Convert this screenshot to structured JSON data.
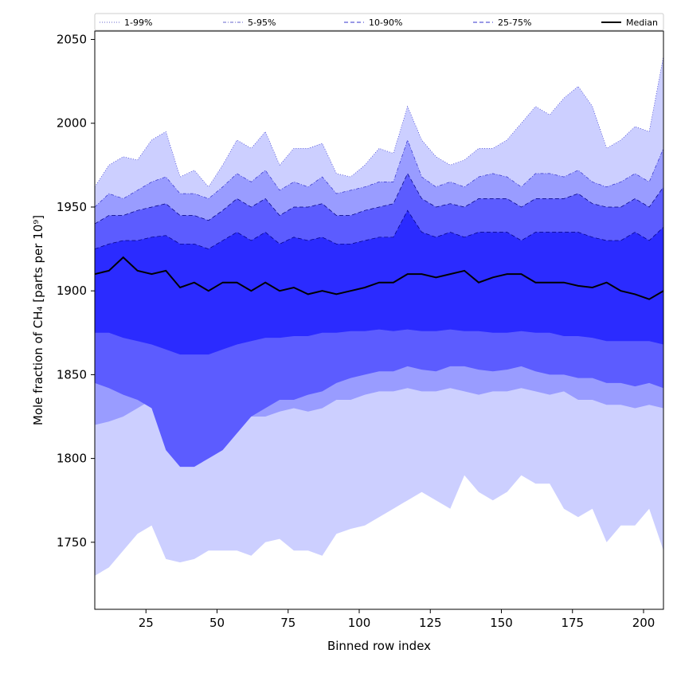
{
  "chart_data": {
    "type": "area",
    "xlabel": "Binned row index",
    "ylabel": "Mole fraction of CH₄ [parts per 10⁹]",
    "xlim": [
      7,
      207
    ],
    "ylim": [
      1710,
      2055
    ],
    "xticks": [
      25,
      50,
      75,
      100,
      125,
      150,
      175,
      200
    ],
    "yticks": [
      1750,
      1800,
      1850,
      1900,
      1950,
      2000,
      2050
    ],
    "legend_position": "top, above plot",
    "x_start": 7,
    "x_step": 5,
    "series": [
      {
        "name": "1-99%",
        "color": "#cccfff",
        "linestyle": "dotted",
        "upper": [
          1962,
          1975,
          1980,
          1978,
          1990,
          1995,
          1968,
          1972,
          1962,
          1975,
          1990,
          1985,
          1995,
          1975,
          1985,
          1985,
          1988,
          1970,
          1968,
          1975,
          1985,
          1982,
          2010,
          1990,
          1980,
          1975,
          1978,
          1985,
          1985,
          1990,
          2000,
          2010,
          2005,
          2015,
          2022,
          2010,
          1985,
          1990,
          1998,
          1995,
          2040
        ],
        "lower": [
          1730,
          1735,
          1745,
          1755,
          1760,
          1740,
          1738,
          1740,
          1745,
          1745,
          1745,
          1742,
          1750,
          1752,
          1745,
          1745,
          1742,
          1755,
          1758,
          1760,
          1765,
          1770,
          1775,
          1780,
          1775,
          1770,
          1790,
          1780,
          1775,
          1780,
          1790,
          1785,
          1785,
          1770,
          1765,
          1770,
          1750,
          1760,
          1760,
          1770,
          1745
        ]
      },
      {
        "name": "5-95%",
        "color": "#999cff",
        "linestyle": "dashdot",
        "upper": [
          1950,
          1958,
          1955,
          1960,
          1965,
          1968,
          1958,
          1958,
          1955,
          1962,
          1970,
          1965,
          1972,
          1960,
          1965,
          1962,
          1968,
          1958,
          1960,
          1962,
          1965,
          1965,
          1990,
          1968,
          1962,
          1965,
          1962,
          1968,
          1970,
          1968,
          1962,
          1970,
          1970,
          1968,
          1972,
          1965,
          1962,
          1965,
          1970,
          1965,
          1985
        ],
        "lower": [
          1820,
          1822,
          1825,
          1830,
          1835,
          1822,
          1820,
          1822,
          1825,
          1825,
          1822,
          1825,
          1825,
          1828,
          1830,
          1828,
          1830,
          1835,
          1835,
          1838,
          1840,
          1840,
          1842,
          1840,
          1840,
          1842,
          1840,
          1838,
          1840,
          1840,
          1842,
          1840,
          1838,
          1840,
          1835,
          1835,
          1832,
          1832,
          1830,
          1832,
          1830
        ]
      },
      {
        "name": "10-90%",
        "color": "#5c5cff",
        "linestyle": "dashed",
        "upper": [
          1940,
          1945,
          1945,
          1948,
          1950,
          1952,
          1945,
          1945,
          1942,
          1948,
          1955,
          1950,
          1955,
          1945,
          1950,
          1950,
          1952,
          1945,
          1945,
          1948,
          1950,
          1952,
          1970,
          1955,
          1950,
          1952,
          1950,
          1955,
          1955,
          1955,
          1950,
          1955,
          1955,
          1955,
          1958,
          1952,
          1950,
          1950,
          1955,
          1950,
          1962
        ],
        "lower": [
          1845,
          1842,
          1838,
          1835,
          1830,
          1805,
          1795,
          1795,
          1800,
          1805,
          1815,
          1825,
          1830,
          1835,
          1835,
          1838,
          1840,
          1845,
          1848,
          1850,
          1852,
          1852,
          1855,
          1853,
          1852,
          1855,
          1855,
          1853,
          1852,
          1853,
          1855,
          1852,
          1850,
          1850,
          1848,
          1848,
          1845,
          1845,
          1843,
          1845,
          1842
        ]
      },
      {
        "name": "25-75%",
        "color": "#2b2bff",
        "linestyle": "dashed",
        "upper": [
          1925,
          1928,
          1930,
          1930,
          1932,
          1933,
          1928,
          1928,
          1925,
          1930,
          1935,
          1930,
          1935,
          1928,
          1932,
          1930,
          1932,
          1928,
          1928,
          1930,
          1932,
          1932,
          1948,
          1935,
          1932,
          1935,
          1932,
          1935,
          1935,
          1935,
          1930,
          1935,
          1935,
          1935,
          1935,
          1932,
          1930,
          1930,
          1935,
          1930,
          1938
        ],
        "lower": [
          1875,
          1875,
          1872,
          1870,
          1868,
          1865,
          1862,
          1862,
          1862,
          1865,
          1868,
          1870,
          1872,
          1872,
          1873,
          1873,
          1875,
          1875,
          1876,
          1876,
          1877,
          1876,
          1877,
          1876,
          1876,
          1877,
          1876,
          1876,
          1875,
          1875,
          1876,
          1875,
          1875,
          1873,
          1873,
          1872,
          1870,
          1870,
          1870,
          1870,
          1868
        ]
      },
      {
        "name": "Median",
        "color": "#000000",
        "linestyle": "solid",
        "values": [
          1910,
          1912,
          1920,
          1912,
          1910,
          1912,
          1902,
          1905,
          1900,
          1905,
          1905,
          1900,
          1905,
          1900,
          1902,
          1898,
          1900,
          1898,
          1900,
          1902,
          1905,
          1905,
          1910,
          1910,
          1908,
          1910,
          1912,
          1905,
          1908,
          1910,
          1910,
          1905,
          1905,
          1905,
          1903,
          1902,
          1905,
          1900,
          1898,
          1895,
          1900
        ]
      }
    ]
  }
}
